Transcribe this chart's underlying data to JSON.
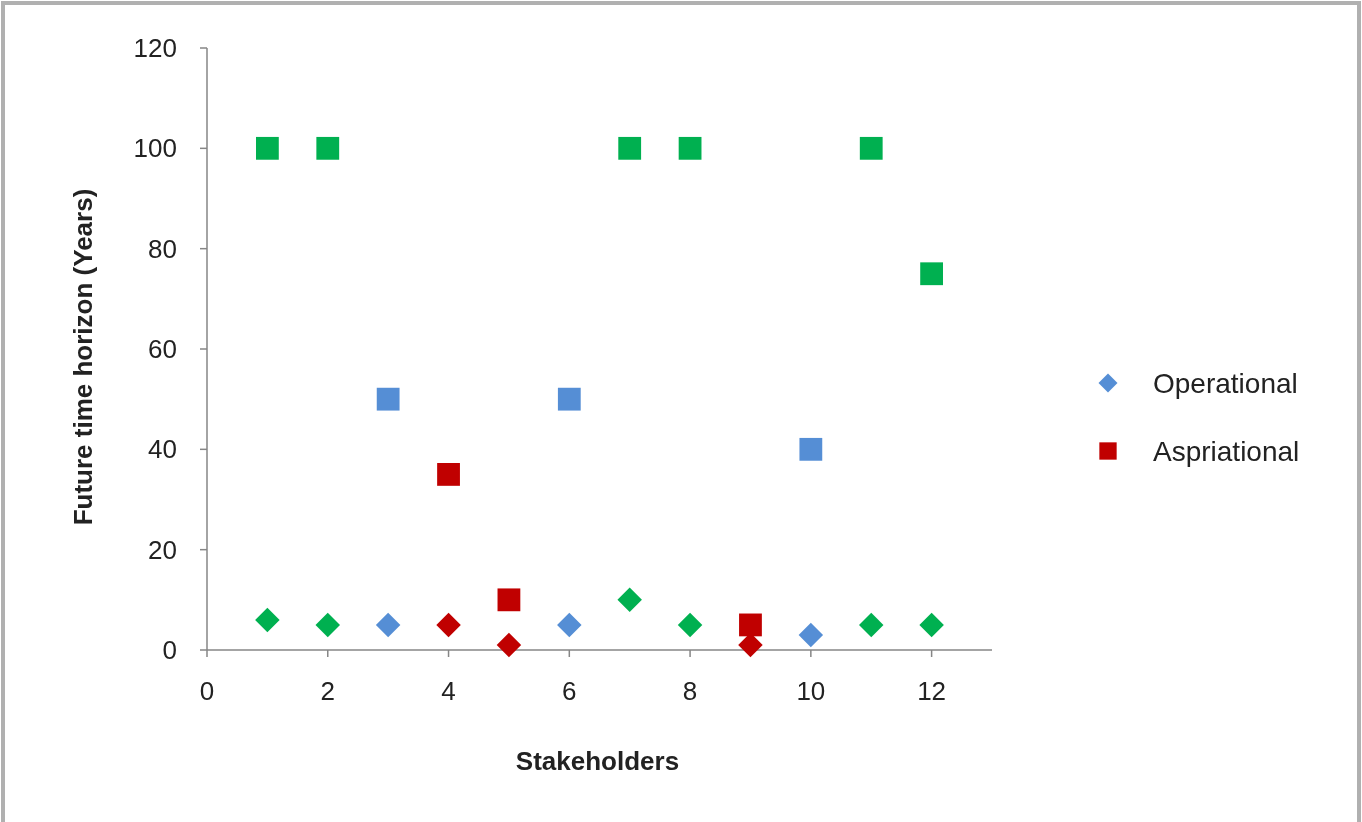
{
  "chart_data": {
    "type": "scatter",
    "xlabel": "Stakeholders",
    "ylabel": "Future time horizon (Years)",
    "x": [
      1,
      2,
      3,
      4,
      5,
      6,
      7,
      8,
      9,
      10,
      11,
      12
    ],
    "series": [
      {
        "name": "Operational",
        "color": "#558ed5",
        "marker": "diamond",
        "values": [
          6,
          5,
          5,
          5,
          1,
          5,
          10,
          5,
          1,
          3,
          5,
          5
        ],
        "colors": [
          "#00b050",
          "#00b050",
          "#558ed5",
          "#c00000",
          "#c00000",
          "#558ed5",
          "#00b050",
          "#00b050",
          "#c00000",
          "#558ed5",
          "#00b050",
          "#00b050"
        ]
      },
      {
        "name": "Aspriational",
        "color": "#c00000",
        "marker": "square",
        "values": [
          100,
          100,
          50,
          35,
          10,
          50,
          100,
          100,
          5,
          40,
          100,
          75
        ],
        "colors": [
          "#00b050",
          "#00b050",
          "#558ed5",
          "#c00000",
          "#c00000",
          "#558ed5",
          "#00b050",
          "#00b050",
          "#c00000",
          "#558ed5",
          "#00b050",
          "#00b050"
        ]
      }
    ],
    "xlim": [
      0,
      13
    ],
    "xticks": [
      0,
      2,
      4,
      6,
      8,
      10,
      12
    ],
    "ylim": [
      0,
      120
    ],
    "yticks": [
      0,
      20,
      40,
      60,
      80,
      100,
      120
    ],
    "grid": false,
    "legend": "right"
  }
}
